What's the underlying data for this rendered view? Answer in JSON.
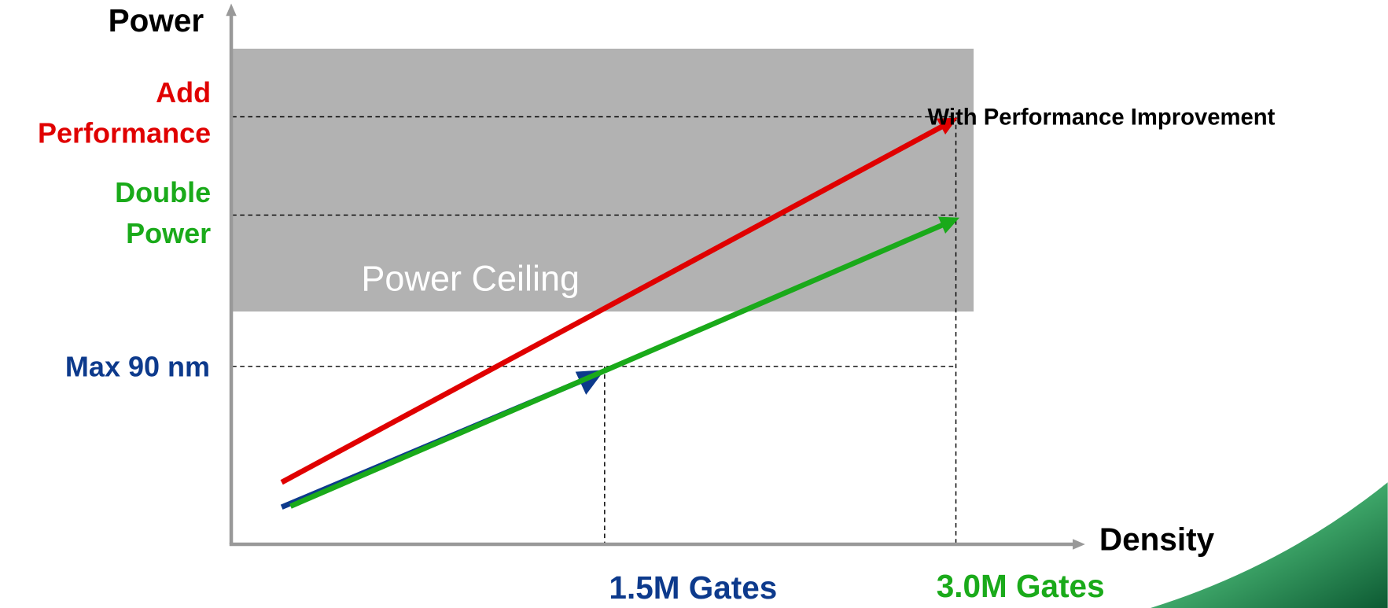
{
  "axes": {
    "y_label": "Power",
    "x_label": "Density"
  },
  "y_levels": [
    {
      "lines": [
        "Add",
        "Performance"
      ]
    },
    {
      "lines": [
        "Double",
        "Power"
      ]
    },
    {
      "lines": [
        "Max 90 nm"
      ]
    }
  ],
  "x_levels": [
    "1.5M Gates",
    "3.0M Gates"
  ],
  "region": {
    "label": "Power Ceiling"
  },
  "annotation": "With Performance Improvement"
}
